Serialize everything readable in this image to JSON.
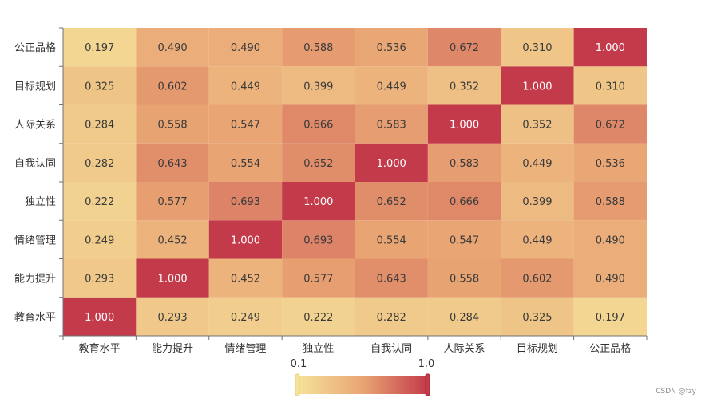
{
  "chart_data": {
    "type": "heatmap",
    "x_categories": [
      "教育水平",
      "能力提升",
      "情绪管理",
      "独立性",
      "自我认同",
      "人际关系",
      "目标规划",
      "公正品格"
    ],
    "y_categories": [
      "教育水平",
      "能力提升",
      "情绪管理",
      "独立性",
      "自我认同",
      "人际关系",
      "目标规划",
      "公正品格"
    ],
    "values": [
      [
        1.0,
        0.293,
        0.249,
        0.222,
        0.282,
        0.284,
        0.325,
        0.197
      ],
      [
        0.293,
        1.0,
        0.452,
        0.577,
        0.643,
        0.558,
        0.602,
        0.49
      ],
      [
        0.249,
        0.452,
        1.0,
        0.693,
        0.554,
        0.547,
        0.449,
        0.49
      ],
      [
        0.222,
        0.577,
        0.693,
        1.0,
        0.652,
        0.666,
        0.399,
        0.588
      ],
      [
        0.282,
        0.643,
        0.554,
        0.652,
        1.0,
        0.583,
        0.449,
        0.536
      ],
      [
        0.284,
        0.558,
        0.547,
        0.666,
        0.583,
        1.0,
        0.352,
        0.672
      ],
      [
        0.325,
        0.602,
        0.449,
        0.399,
        0.449,
        0.352,
        1.0,
        0.31
      ],
      [
        0.197,
        0.49,
        0.49,
        0.588,
        0.536,
        0.672,
        0.31,
        1.0
      ]
    ],
    "value_labels": [
      [
        "1.000",
        "0.293",
        "0.249",
        "0.222",
        "0.282",
        "0.284",
        "0.325",
        "0.197"
      ],
      [
        "0.293",
        "1.000",
        "0.452",
        "0.577",
        "0.643",
        "0.558",
        "0.602",
        "0.490"
      ],
      [
        "0.249",
        "0.452",
        "1.000",
        "0.693",
        "0.554",
        "0.547",
        "0.449",
        "0.490"
      ],
      [
        "0.222",
        "0.577",
        "0.693",
        "1.000",
        "0.652",
        "0.666",
        "0.399",
        "0.588"
      ],
      [
        "0.282",
        "0.643",
        "0.554",
        "0.652",
        "1.000",
        "0.583",
        "0.449",
        "0.536"
      ],
      [
        "0.284",
        "0.558",
        "0.547",
        "0.666",
        "0.583",
        "1.000",
        "0.352",
        "0.672"
      ],
      [
        "0.325",
        "0.602",
        "0.449",
        "0.399",
        "0.449",
        "0.352",
        "1.000",
        "0.310"
      ],
      [
        "0.197",
        "0.490",
        "0.490",
        "0.588",
        "0.536",
        "0.672",
        "0.310",
        "1.000"
      ]
    ],
    "y_order": "bottom-to-top",
    "visual_map": {
      "min": 0.1,
      "max": 1.0,
      "min_label": "0.1",
      "max_label": "1.0",
      "colors": [
        "#f5e39a",
        "#e9a574",
        "#c33a4a"
      ],
      "placement": "bottom-center"
    },
    "grid": false,
    "title": "",
    "xlabel": "",
    "ylabel": ""
  },
  "watermark": "CSDN @fzy"
}
